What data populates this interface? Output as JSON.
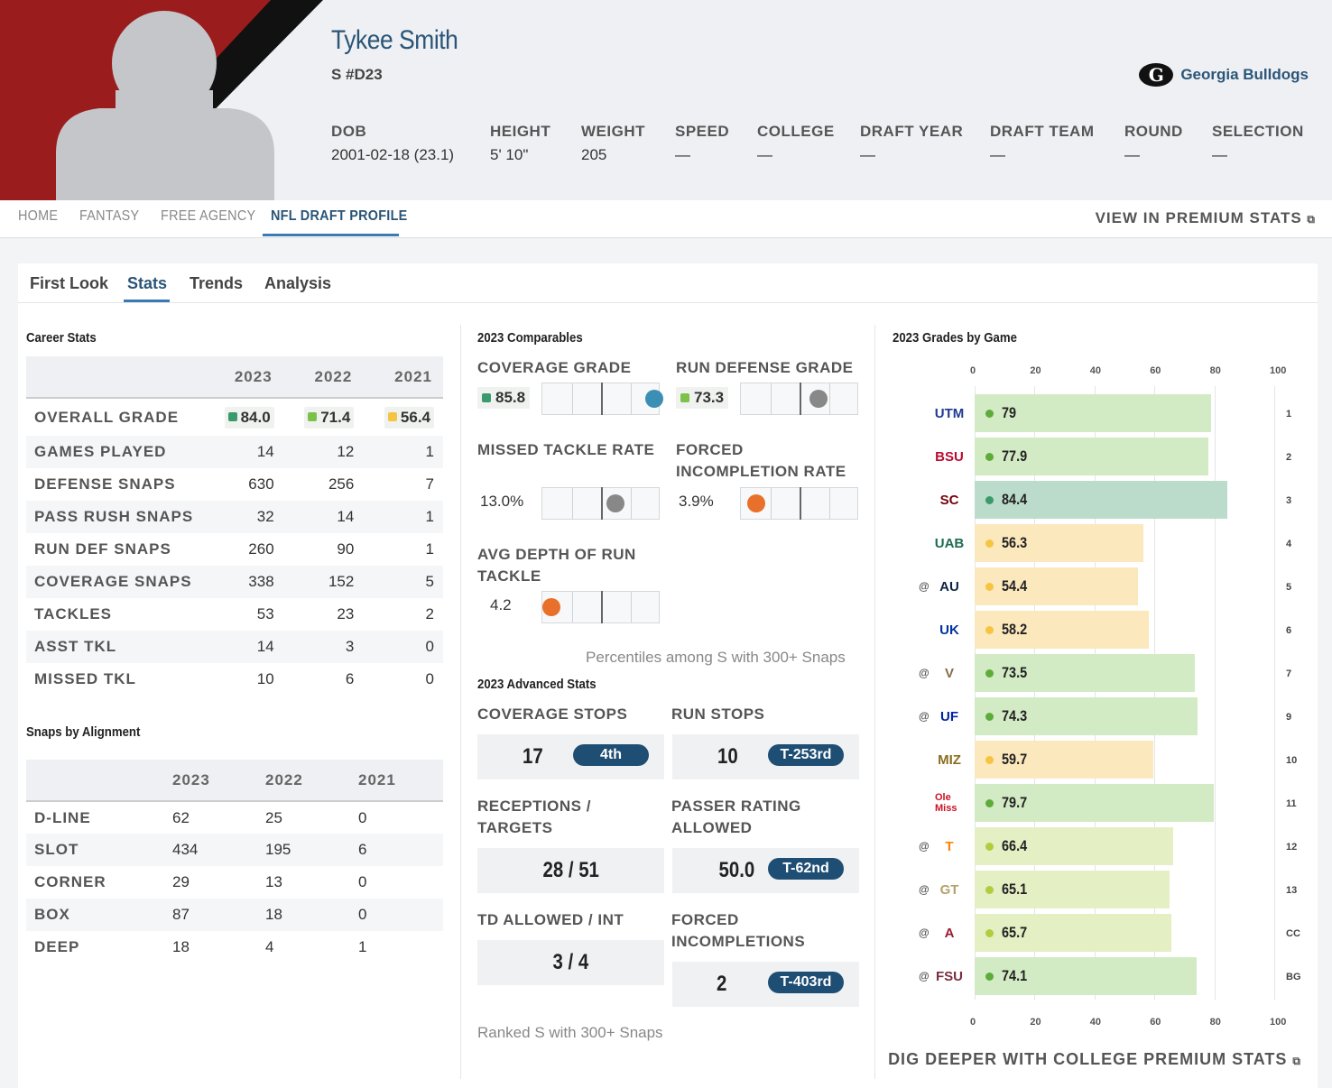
{
  "player": {
    "name": "Tykee Smith",
    "position": "S #D23",
    "team": "Georgia Bulldogs",
    "team_logo": "G"
  },
  "facts": [
    {
      "k": "DOB",
      "v": "2001-02-18 (23.1)"
    },
    {
      "k": "HEIGHT",
      "v": "5' 10\""
    },
    {
      "k": "WEIGHT",
      "v": "205"
    },
    {
      "k": "SPEED",
      "v": "—"
    },
    {
      "k": "COLLEGE",
      "v": "—"
    },
    {
      "k": "DRAFT YEAR",
      "v": "—"
    },
    {
      "k": "DRAFT TEAM",
      "v": "—"
    },
    {
      "k": "ROUND",
      "v": "—"
    },
    {
      "k": "SELECTION",
      "v": "—"
    }
  ],
  "nav": {
    "tabs": [
      "HOME",
      "FANTASY",
      "FREE AGENCY",
      "NFL DRAFT PROFILE"
    ],
    "active": 3,
    "premium": "VIEW IN PREMIUM STATS"
  },
  "subtabs": [
    "First Look",
    "Stats",
    "Trends",
    "Analysis"
  ],
  "career": {
    "title": "Career Stats",
    "years": [
      "2023",
      "2022",
      "2021"
    ],
    "grade_label": "OVERALL GRADE",
    "grades": [
      {
        "v": "84.0",
        "color": "#3a9a6e"
      },
      {
        "v": "71.4",
        "color": "#7cc24a"
      },
      {
        "v": "56.4",
        "color": "#f5c542"
      }
    ],
    "rows": [
      {
        "label": "GAMES PLAYED",
        "v": [
          "14",
          "12",
          "1"
        ]
      },
      {
        "label": "DEFENSE SNAPS",
        "v": [
          "630",
          "256",
          "7"
        ]
      },
      {
        "label": "PASS RUSH SNAPS",
        "v": [
          "32",
          "14",
          "1"
        ]
      },
      {
        "label": "RUN DEF SNAPS",
        "v": [
          "260",
          "90",
          "1"
        ]
      },
      {
        "label": "COVERAGE SNAPS",
        "v": [
          "338",
          "152",
          "5"
        ]
      },
      {
        "label": "TACKLES",
        "v": [
          "53",
          "23",
          "2"
        ]
      },
      {
        "label": "ASST TKL",
        "v": [
          "14",
          "3",
          "0"
        ]
      },
      {
        "label": "MISSED TKL",
        "v": [
          "10",
          "6",
          "0"
        ]
      }
    ]
  },
  "alignment": {
    "title": "Snaps by Alignment",
    "years": [
      "2023",
      "2022",
      "2021"
    ],
    "rows": [
      {
        "label": "D-LINE",
        "v": [
          "62",
          "25",
          "0"
        ]
      },
      {
        "label": "SLOT",
        "v": [
          "434",
          "195",
          "6"
        ]
      },
      {
        "label": "CORNER",
        "v": [
          "29",
          "13",
          "0"
        ]
      },
      {
        "label": "BOX",
        "v": [
          "87",
          "18",
          "0"
        ]
      },
      {
        "label": "DEEP",
        "v": [
          "18",
          "4",
          "1"
        ]
      }
    ]
  },
  "comparables": {
    "title": "2023 Comparables",
    "items": [
      {
        "label": "COVERAGE GRADE",
        "value": "85.8",
        "chip": "#3a9a6e",
        "percentile": 0.95,
        "dot": "#3b8fb5"
      },
      {
        "label": "RUN DEFENSE GRADE",
        "value": "73.3",
        "chip": "#7cc24a",
        "percentile": 0.66,
        "dot": "#888888"
      },
      {
        "label": "MISSED TACKLE RATE",
        "value": "13.0%",
        "percentile": 0.62,
        "dot": "#888888"
      },
      {
        "label": "FORCED INCOMPLETION RATE",
        "value": "3.9%",
        "percentile": 0.13,
        "dot": "#e8702a"
      },
      {
        "label": "AVG DEPTH OF RUN TACKLE",
        "value": "4.2",
        "percentile": 0.08,
        "dot": "#e8702a"
      }
    ],
    "note": "Percentiles among S with 300+ Snaps"
  },
  "advanced": {
    "title": "2023 Advanced Stats",
    "items": [
      {
        "label": "COVERAGE STOPS",
        "value": "17",
        "rank": "4th"
      },
      {
        "label": "RUN STOPS",
        "value": "10",
        "rank": "T-253rd"
      },
      {
        "label": "RECEPTIONS / TARGETS",
        "value": "28 / 51",
        "rank": ""
      },
      {
        "label": "PASSER RATING ALLOWED",
        "value": "50.0",
        "rank": "T-62nd"
      },
      {
        "label": "TD ALLOWED / INT",
        "value": "3 / 4",
        "rank": ""
      },
      {
        "label": "FORCED INCOMPLETIONS",
        "value": "2",
        "rank": "T-403rd"
      }
    ],
    "note": "Ranked S with 300+ Snaps"
  },
  "chart_data": {
    "type": "bar",
    "title": "2023 Grades by Game",
    "xlim": [
      0,
      100
    ],
    "ticks": [
      "0",
      "20",
      "40",
      "60",
      "80",
      "100"
    ],
    "games": [
      {
        "week": "1",
        "away": false,
        "logo": "UTM",
        "logo_color": "#1f3a93",
        "grade": 79
      },
      {
        "week": "2",
        "away": false,
        "logo": "BSU",
        "logo_color": "#ba0c2f",
        "grade": 77.9
      },
      {
        "week": "3",
        "away": false,
        "logo": "SC",
        "logo_color": "#73000a",
        "grade": 84.4
      },
      {
        "week": "4",
        "away": false,
        "logo": "UAB",
        "logo_color": "#1e6b52",
        "grade": 56.3
      },
      {
        "week": "5",
        "away": true,
        "logo": "AU",
        "logo_color": "#0c2340",
        "grade": 54.4
      },
      {
        "week": "6",
        "away": false,
        "logo": "UK",
        "logo_color": "#0033a0",
        "grade": 58.2
      },
      {
        "week": "7",
        "away": true,
        "logo": "V",
        "logo_color": "#866d4b",
        "grade": 73.5
      },
      {
        "week": "9",
        "away": true,
        "logo": "UF",
        "logo_color": "#0021a5",
        "grade": 74.3
      },
      {
        "week": "10",
        "away": false,
        "logo": "MIZ",
        "logo_color": "#8a6d1f",
        "grade": 59.7
      },
      {
        "week": "11",
        "away": false,
        "logo": "Ole Miss",
        "logo_color": "#ce1126",
        "grade": 79.7
      },
      {
        "week": "12",
        "away": true,
        "logo": "T",
        "logo_color": "#ff8200",
        "grade": 66.4
      },
      {
        "week": "13",
        "away": true,
        "logo": "GT",
        "logo_color": "#b3a369",
        "grade": 65.1
      },
      {
        "week": "CC",
        "away": true,
        "logo": "A",
        "logo_color": "#9e1b32",
        "grade": 65.7
      },
      {
        "week": "BG",
        "away": true,
        "logo": "FSU",
        "logo_color": "#782f40",
        "grade": 74.1
      }
    ],
    "away_marker": "@"
  },
  "footer": {
    "dig": "DIG DEEPER WITH COLLEGE PREMIUM STATS"
  }
}
